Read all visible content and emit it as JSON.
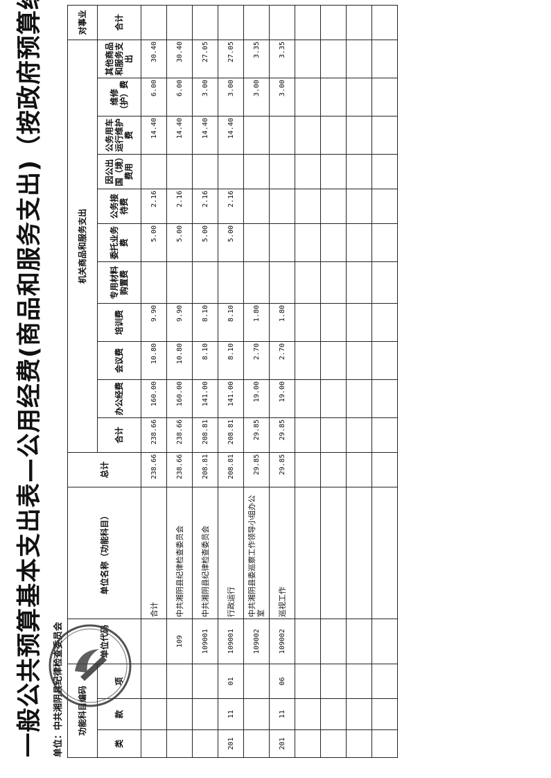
{
  "title": "一般公共预算基本支出表—公用经费(商品和服务支出)（按政府预算经济分类）",
  "unit_label": "单位：中共湘阴县纪律检查委员会",
  "stamp_text": "中共湘阴县纪律检查委员会",
  "headers": {
    "func_code_group": "功能科目编码",
    "lei": "类",
    "kuan": "款",
    "xiang": "项",
    "unit_code": "单位代码",
    "unit_name": "单位名称（功能科目）",
    "grand_total": "总计",
    "goods_group": "机关商品和服务支出",
    "goods_cols": [
      "合计",
      "办公经费",
      "会议费",
      "培训费",
      "专用材料购置费",
      "委托业务费",
      "公务接待费",
      "因公出国（境）费用",
      "公务用车运行维护费",
      "维修（护）费",
      "其他商品和服务支出"
    ],
    "subsidy_group": "对事业",
    "subsidy_total": "合计"
  },
  "rows": [
    {
      "lei": "",
      "kuan": "",
      "xiang": "",
      "unit_code": "",
      "name": "合计",
      "total": "238.66",
      "goods": [
        "238.66",
        "160.00",
        "10.80",
        "9.90",
        "",
        "5.00",
        "2.16",
        "",
        "14.40",
        "6.00",
        "30.40"
      ],
      "subsidy": ""
    },
    {
      "lei": "",
      "kuan": "",
      "xiang": "",
      "unit_code": "109",
      "name": "中共湘阴县纪律检查委员会",
      "total": "238.66",
      "goods": [
        "238.66",
        "160.00",
        "10.80",
        "9.90",
        "",
        "5.00",
        "2.16",
        "",
        "14.40",
        "6.00",
        "30.40"
      ],
      "subsidy": ""
    },
    {
      "lei": "",
      "kuan": "",
      "xiang": "",
      "unit_code": "109001",
      "name": "中共湘阴县纪律检查委员会",
      "total": "208.81",
      "goods": [
        "208.81",
        "141.00",
        "8.10",
        "8.10",
        "",
        "5.00",
        "2.16",
        "",
        "14.40",
        "3.00",
        "27.05"
      ],
      "subsidy": ""
    },
    {
      "lei": "201",
      "kuan": "11",
      "xiang": "01",
      "unit_code": "109001",
      "name": "行政运行",
      "total": "208.81",
      "goods": [
        "208.81",
        "141.00",
        "8.10",
        "8.10",
        "",
        "5.00",
        "2.16",
        "",
        "14.40",
        "3.00",
        "27.05"
      ],
      "subsidy": ""
    },
    {
      "lei": "",
      "kuan": "",
      "xiang": "",
      "unit_code": "109002",
      "name": "中共湘阴县委巡察工作领导小组办公室",
      "total": "29.85",
      "goods": [
        "29.85",
        "19.00",
        "2.70",
        "1.80",
        "",
        "",
        "",
        "",
        "",
        "3.00",
        "3.35"
      ],
      "subsidy": ""
    },
    {
      "lei": "201",
      "kuan": "11",
      "xiang": "06",
      "unit_code": "109002",
      "name": "巡视工作",
      "total": "29.85",
      "goods": [
        "29.85",
        "19.00",
        "2.70",
        "1.80",
        "",
        "",
        "",
        "",
        "",
        "3.00",
        "3.35"
      ],
      "subsidy": ""
    },
    {
      "lei": "",
      "kuan": "",
      "xiang": "",
      "unit_code": "",
      "name": "",
      "total": "",
      "goods": [
        "",
        "",
        "",
        "",
        "",
        "",
        "",
        "",
        "",
        "",
        ""
      ],
      "subsidy": ""
    },
    {
      "lei": "",
      "kuan": "",
      "xiang": "",
      "unit_code": "",
      "name": "",
      "total": "",
      "goods": [
        "",
        "",
        "",
        "",
        "",
        "",
        "",
        "",
        "",
        "",
        ""
      ],
      "subsidy": ""
    },
    {
      "lei": "",
      "kuan": "",
      "xiang": "",
      "unit_code": "",
      "name": "",
      "total": "",
      "goods": [
        "",
        "",
        "",
        "",
        "",
        "",
        "",
        "",
        "",
        "",
        ""
      ],
      "subsidy": ""
    },
    {
      "lei": "",
      "kuan": "",
      "xiang": "",
      "unit_code": "",
      "name": "",
      "total": "",
      "goods": [
        "",
        "",
        "",
        "",
        "",
        "",
        "",
        "",
        "",
        "",
        ""
      ],
      "subsidy": ""
    }
  ]
}
